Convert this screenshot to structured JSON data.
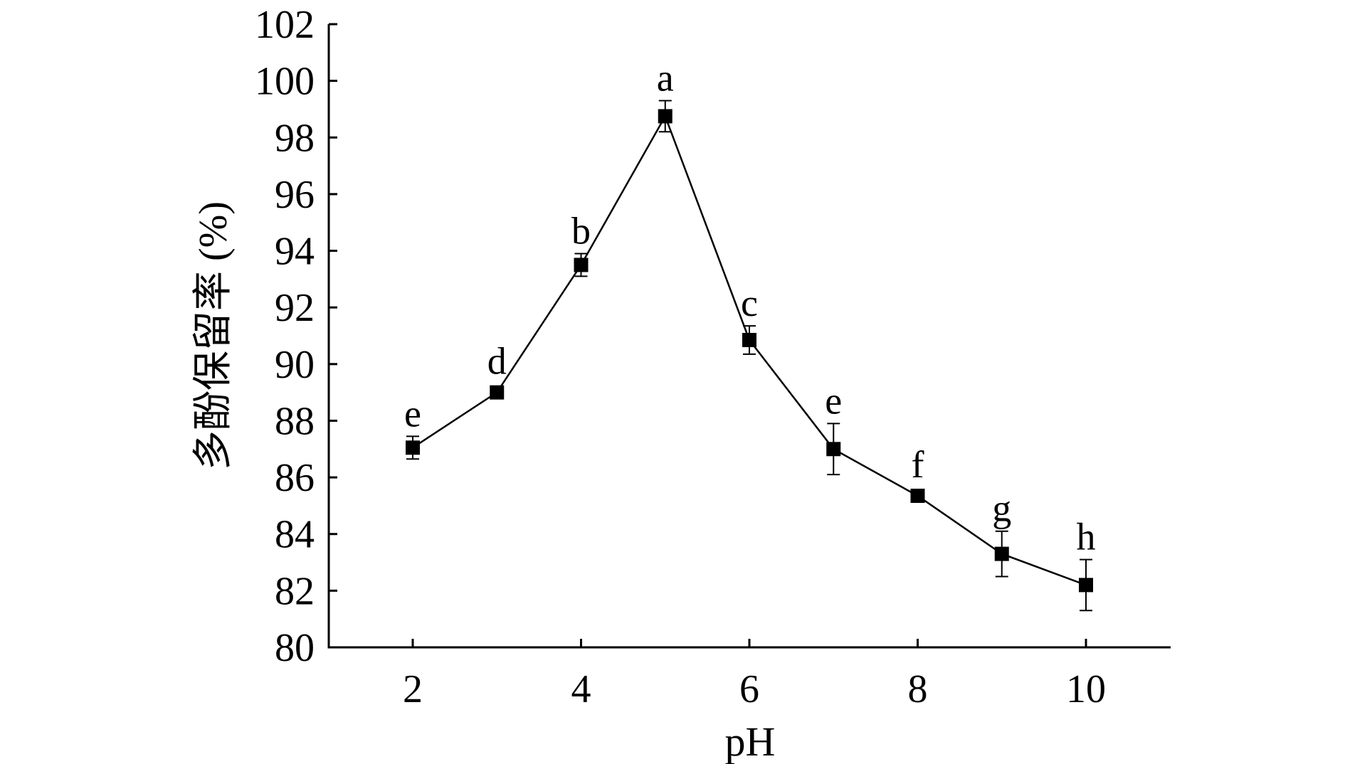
{
  "chart_data": {
    "type": "line",
    "title": "",
    "xlabel": "pH",
    "ylabel": "多酚保留率 (%)",
    "xlim": [
      1,
      11
    ],
    "ylim": [
      80,
      102
    ],
    "xticks": [
      2,
      4,
      6,
      8,
      10
    ],
    "yticks": [
      80,
      82,
      84,
      86,
      88,
      90,
      92,
      94,
      96,
      98,
      100,
      102
    ],
    "grid": false,
    "series": [
      {
        "name": "polyphenol retention",
        "x": [
          2,
          3,
          4,
          5,
          6,
          7,
          8,
          9,
          10
        ],
        "y": [
          87.05,
          89.0,
          93.5,
          98.75,
          90.85,
          87.0,
          85.35,
          83.3,
          82.2
        ],
        "error": [
          0.4,
          0.1,
          0.4,
          0.55,
          0.5,
          0.9,
          0.2,
          0.8,
          0.9
        ],
        "labels": [
          "e",
          "d",
          "b",
          "a",
          "c",
          "e",
          "f",
          "g",
          "h"
        ],
        "color": "#000000"
      }
    ]
  }
}
